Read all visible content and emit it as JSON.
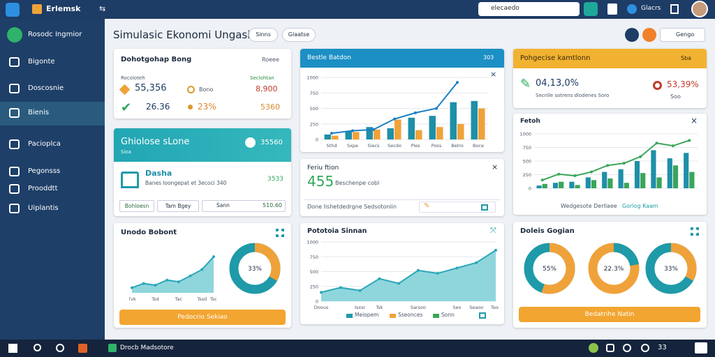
{
  "topbar": {
    "brand": "Erlemsk",
    "search": "elecaedo",
    "user": "Glacrs"
  },
  "sidebar": {
    "title": "Rosodc Ingmior",
    "items": [
      "Bigonte",
      "Doscosnie",
      "Bienis",
      "Pacioplca",
      "Pegonsss",
      "Prooddtt",
      "Uiplantis"
    ],
    "active": 2
  },
  "header": {
    "title": "Simulasic Ekonomi Ungasia",
    "buttons": [
      "Sinns",
      "Glaatse"
    ],
    "lang": "Gengo"
  },
  "summary": {
    "title": "Dohotgohap Bong",
    "action": "Roeee",
    "left_label": "Rocoloteh",
    "right_label": "Seclohtan",
    "rows": [
      [
        "55,356",
        "Bono",
        "8,900"
      ],
      [
        "26.36",
        "23%",
        "5360"
      ]
    ]
  },
  "teal": {
    "title": "Ghiolose sLone",
    "subtitle": "Sioa",
    "value": "35560",
    "name": "Dasha",
    "desc": "Banes loongepat et 3ecoci 340",
    "amount": "3533",
    "chips": [
      "Bohloesn",
      "Tam Bgey",
      "Sann"
    ],
    "total": "510.60"
  },
  "trend": {
    "title": "Unodo Bobont",
    "chart": {
      "type": "area",
      "ylim": [
        0,
        100
      ],
      "categories": [
        "Tvk",
        null,
        "Tsd",
        null,
        "Tac",
        null,
        "Tssd",
        "Tso"
      ],
      "series": [
        {
          "type": "area",
          "color": "#2aa7b8",
          "fill": "#8fd6dc",
          "values": [
            12,
            22,
            18,
            30,
            26,
            40,
            55,
            85
          ]
        }
      ]
    },
    "donut": {
      "value": 33,
      "label": "33%",
      "color": "#f0a23a",
      "track": "#1f9aa8"
    },
    "button": "Pedocrio Sekiao"
  },
  "bars": {
    "title": "Bestle Batdon",
    "badge": "303",
    "chart": {
      "type": "bar",
      "ylim": [
        0,
        1000
      ],
      "yticks": [
        0,
        250,
        500,
        750,
        1000
      ],
      "categories": [
        "Sthd",
        "Sxpe",
        "Siecs",
        "Secdo",
        "Ples",
        "Poss",
        "Betro",
        "Boce"
      ],
      "series": [
        {
          "type": "bar",
          "color": "#1f8fa8",
          "values": [
            80,
            130,
            200,
            180,
            350,
            380,
            600,
            620
          ]
        },
        {
          "type": "bar",
          "color": "#f0a23a",
          "values": [
            60,
            120,
            160,
            320,
            150,
            200,
            250,
            500
          ]
        },
        {
          "type": "line",
          "color": "#1a7fc4",
          "values": [
            100,
            140,
            160,
            330,
            430,
            500,
            920,
            null
          ]
        }
      ]
    }
  },
  "feature": {
    "title": "Feriu ftion",
    "value": "455",
    "desc": "Beschenpe cobl",
    "footer": "Done lishetdedrgne Sedsotoniin"
  },
  "area": {
    "title": "Pototoia Sinnan",
    "chart": {
      "type": "area",
      "ylim": [
        0,
        1000
      ],
      "yticks": [
        0,
        250,
        500,
        750,
        1000
      ],
      "categories": [
        "Doous",
        null,
        "Isxsr",
        "Tsk",
        null,
        "Sarsoo",
        null,
        "Seo",
        "Seaoo",
        "Tsoe"
      ],
      "series": [
        {
          "type": "area",
          "color": "#2aa7b8",
          "fill": "#8fd6dc",
          "values": [
            150,
            230,
            180,
            380,
            300,
            520,
            470,
            560,
            650,
            860
          ]
        }
      ]
    },
    "legend": [
      {
        "name": "Meiopem",
        "color": "#1f9aa8"
      },
      {
        "name": "Sseonces",
        "color": "#f0a23a"
      },
      {
        "name": "Sonn",
        "color": "#3aa55a"
      }
    ]
  },
  "orange": {
    "title": "Pohgecise kamtlonn",
    "action": "Sba",
    "value": "04,13,0%",
    "desc": "Secnlle sotrens dlodenes Soro",
    "value2": "53,39%",
    "sub2": "Soo"
  },
  "bars2": {
    "title": "Fetoh",
    "chart": {
      "type": "bar",
      "ylim": [
        0,
        1000
      ],
      "yticks": [
        0,
        250,
        500,
        750,
        1000
      ],
      "series": [
        {
          "type": "bar",
          "color": "#1f8fa8",
          "values": [
            50,
            100,
            120,
            200,
            300,
            350,
            500,
            700,
            550,
            650
          ]
        },
        {
          "type": "bar",
          "color": "#3aa55a",
          "values": [
            80,
            120,
            60,
            150,
            180,
            100,
            280,
            200,
            420,
            300
          ]
        },
        {
          "type": "line",
          "color": "#3aa55a",
          "values": [
            150,
            260,
            230,
            300,
            420,
            460,
            580,
            830,
            780,
            880
          ]
        }
      ]
    },
    "footer": [
      "Wedgesote Derllaee",
      "Goriog Kaam"
    ]
  },
  "donuts": {
    "title": "Doleis Gogian",
    "items": [
      {
        "value": 55,
        "label": "55%",
        "color": "#f0a23a",
        "track": "#1f9aa8"
      },
      {
        "value": 22.3,
        "label": "22.3%",
        "color": "#1f9aa8",
        "track": "#f0a23a"
      },
      {
        "value": 33,
        "label": "33%",
        "color": "#f0a23a",
        "track": "#1f9aa8"
      }
    ],
    "button": "Bedatrihe Natin"
  },
  "taskbar": {
    "app": "Drocb Madsotore",
    "badge": "33"
  }
}
